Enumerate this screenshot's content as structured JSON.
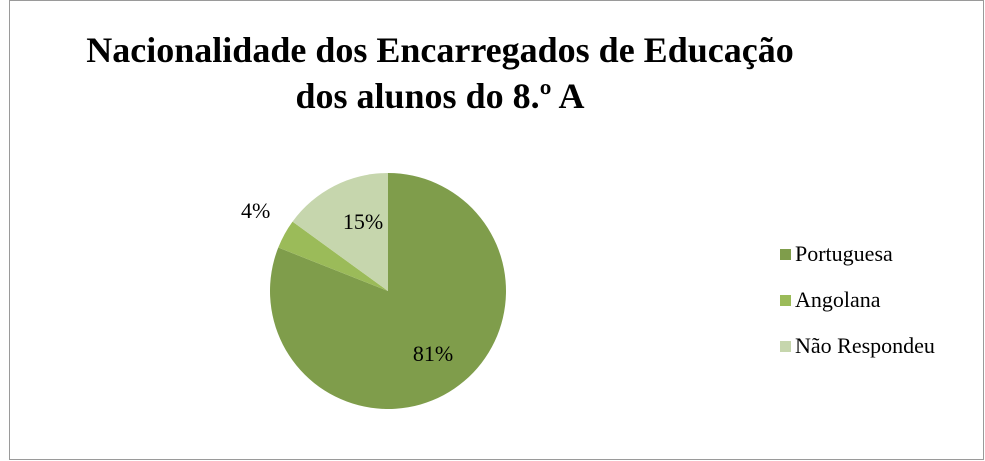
{
  "chart_data": {
    "type": "pie",
    "title_lines": [
      "Nacionalidade dos Encarregados de Educação",
      "dos alunos do 8.º A"
    ],
    "categories": [
      "Portuguesa",
      "Angolana",
      "Não Respondeu"
    ],
    "values": [
      81,
      4,
      15
    ],
    "labels": [
      "81%",
      "4%",
      "15%"
    ],
    "colors": [
      "#7f9d4b",
      "#9bbb59",
      "#c6d6ad"
    ],
    "legend_position": "right"
  }
}
